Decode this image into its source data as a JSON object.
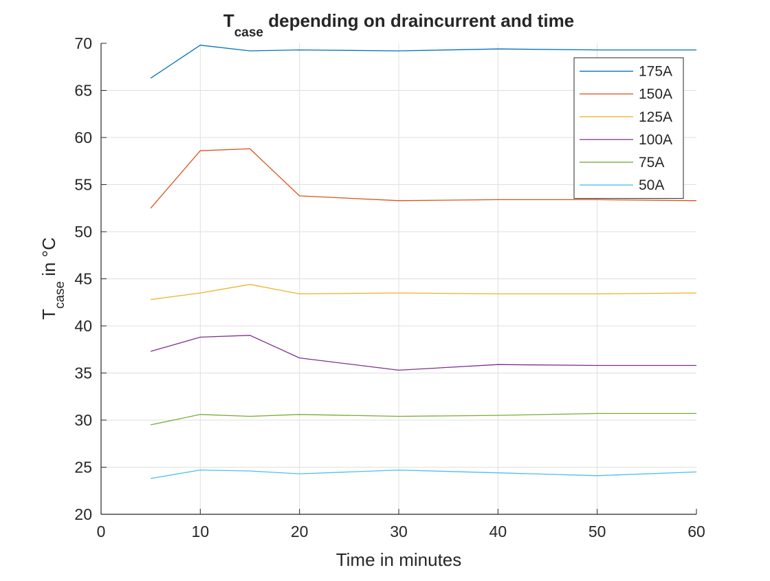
{
  "chart_data": {
    "type": "line",
    "title": {
      "main": "T",
      "sub": "case",
      "rest": " depending on draincurrent and time"
    },
    "xlabel": "Time in minutes",
    "ylabel": {
      "main": "T",
      "sub": "case",
      "rest": " in °C"
    },
    "xlim": [
      0,
      60
    ],
    "ylim": [
      20,
      70
    ],
    "xticks": [
      0,
      10,
      20,
      30,
      40,
      50,
      60
    ],
    "yticks": [
      20,
      25,
      30,
      35,
      40,
      45,
      50,
      55,
      60,
      65,
      70
    ],
    "grid": true,
    "legend_position": "top-right",
    "x": [
      5,
      10,
      15,
      20,
      30,
      40,
      50,
      60
    ],
    "series": [
      {
        "name": "175A",
        "color": "#0072BD",
        "values": [
          66.3,
          69.8,
          69.2,
          69.3,
          69.2,
          69.4,
          69.3,
          69.3
        ]
      },
      {
        "name": "150A",
        "color": "#D95319",
        "values": [
          52.5,
          58.6,
          58.8,
          53.8,
          53.3,
          53.4,
          53.4,
          53.3
        ]
      },
      {
        "name": "125A",
        "color": "#EDB120",
        "values": [
          42.8,
          43.5,
          44.4,
          43.4,
          43.5,
          43.4,
          43.4,
          43.5
        ]
      },
      {
        "name": "100A",
        "color": "#7E2F8E",
        "values": [
          37.3,
          38.8,
          39.0,
          36.6,
          35.3,
          35.9,
          35.8,
          35.8
        ]
      },
      {
        "name": "75A",
        "color": "#77AC30",
        "values": [
          29.5,
          30.6,
          30.4,
          30.6,
          30.4,
          30.5,
          30.7,
          30.7
        ]
      },
      {
        "name": "50A",
        "color": "#4DBEEE",
        "values": [
          23.8,
          24.7,
          24.6,
          24.3,
          24.7,
          24.4,
          24.1,
          24.5
        ]
      }
    ]
  }
}
